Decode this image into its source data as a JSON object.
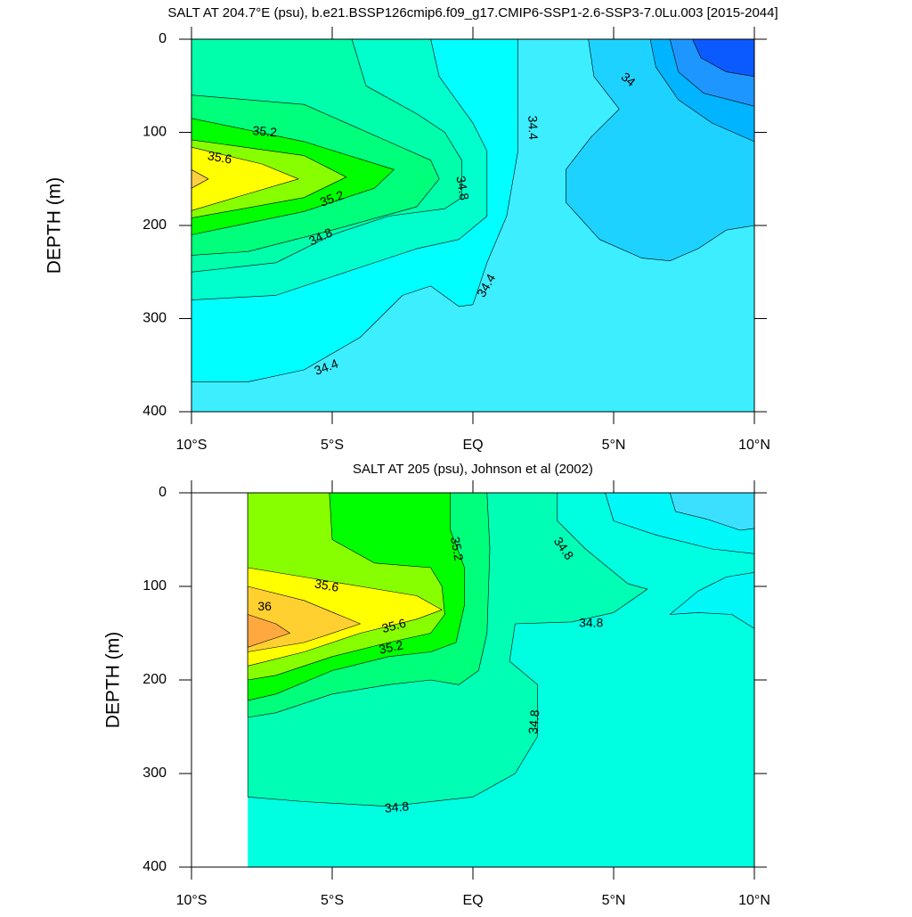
{
  "chart_data": [
    {
      "type": "contour",
      "title": "SALT AT 204.7°E (psu), b.e21.BSSP126cmip6.f09_g17.CMIP6-SSP1-2.6-SSP3-7.0Lu.003 [2015-2044]",
      "ylabel": "DEPTH (m)",
      "xlim": [
        -10,
        10
      ],
      "xticks": [
        {
          "value": -10,
          "label": "10°S"
        },
        {
          "value": -5,
          "label": "5°S"
        },
        {
          "value": 0,
          "label": "EQ"
        },
        {
          "value": 5,
          "label": "5°N"
        },
        {
          "value": 10,
          "label": "10°N"
        }
      ],
      "ylim": [
        400,
        0
      ],
      "yticks": [
        0,
        100,
        200,
        300,
        400
      ],
      "colors": [
        "#3ceeff",
        "#00ffff",
        "#00ffcc",
        "#00ffaa",
        "#00ff7a",
        "#00ff00",
        "#88ff00",
        "#ffff00",
        "#ffd040",
        "#1ed2ff",
        "#00b4ff",
        "#1e96ff",
        "#0a5aff"
      ],
      "contour_labels": [
        35.2,
        35.6,
        35.2,
        34.8,
        34.8,
        34.4,
        34.4,
        34.4,
        34
      ]
    },
    {
      "type": "contour",
      "title": "SALT AT 205 (psu), Johnson et al (2002)",
      "ylabel": "DEPTH (m)",
      "xlim": [
        -10,
        10
      ],
      "xticks": [
        {
          "value": -10,
          "label": "10°S"
        },
        {
          "value": -5,
          "label": "5°S"
        },
        {
          "value": 0,
          "label": "EQ"
        },
        {
          "value": 5,
          "label": "5°N"
        },
        {
          "value": 10,
          "label": "10°N"
        }
      ],
      "ylim": [
        400,
        0
      ],
      "yticks": [
        0,
        100,
        200,
        300,
        400
      ],
      "colors": [
        "#00ffe0",
        "#00ffb4",
        "#00ff7a",
        "#00ff00",
        "#88ff00",
        "#ffff00",
        "#ffd030",
        "#ffa840",
        "#00f8f8",
        "#3ce0ff"
      ],
      "contour_labels": [
        35.2,
        34.8,
        35.6,
        36,
        35.6,
        35.2,
        34.8,
        34.8,
        34.8
      ]
    }
  ]
}
